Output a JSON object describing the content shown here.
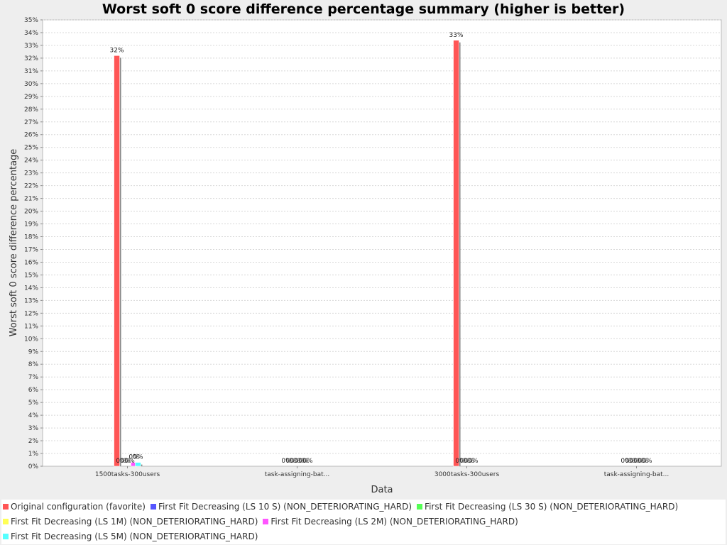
{
  "chart_data": {
    "type": "bar",
    "title": "Worst soft 0 score difference percentage summary (higher is better)",
    "xlabel": "Data",
    "ylabel": "Worst soft 0 score difference percentage",
    "ylim": [
      0,
      35
    ],
    "y_tick_step": 1,
    "y_tick_suffix": "%",
    "grid": true,
    "legend_position": "bottom",
    "categories": [
      "1500tasks-300users",
      "task-assigning-bat...",
      "3000tasks-300users",
      "task-assigning-bat..."
    ],
    "series": [
      {
        "name": "Original configuration (favorite)",
        "color": "#ff5555",
        "values": [
          32.2,
          0,
          33.4,
          0
        ],
        "labels": [
          "32%",
          "0%",
          "33%",
          "0%"
        ]
      },
      {
        "name": "First Fit Decreasing (LS 10 S) (NON_DETERIORATING_HARD)",
        "color": "#5555ff",
        "values": [
          0,
          0,
          0,
          0
        ],
        "labels": [
          "0%",
          "0%",
          "0%",
          "0%"
        ]
      },
      {
        "name": "First Fit Decreasing (LS 30 S) (NON_DETERIORATING_HARD)",
        "color": "#55ff55",
        "values": [
          0,
          0,
          0,
          0
        ],
        "labels": [
          "0%",
          "0%",
          "0%",
          "0%"
        ]
      },
      {
        "name": "First Fit Decreasing (LS 1M) (NON_DETERIORATING_HARD)",
        "color": "#ffff55",
        "values": [
          0,
          0,
          0,
          0
        ],
        "labels": [
          "0%",
          "0%",
          "0%",
          "0%"
        ]
      },
      {
        "name": "First Fit Decreasing (LS 2M) (NON_DETERIORATING_HARD)",
        "color": "#ff55ff",
        "values": [
          0.3,
          0,
          0,
          0
        ],
        "labels": [
          "0%",
          "0%",
          "0%",
          "0%"
        ]
      },
      {
        "name": "First Fit Decreasing (LS 5M) (NON_DETERIORATING_HARD)",
        "color": "#55ffff",
        "values": [
          0.3,
          0,
          0,
          0
        ],
        "labels": [
          "0%",
          "0%",
          "",
          "0%"
        ]
      }
    ]
  }
}
